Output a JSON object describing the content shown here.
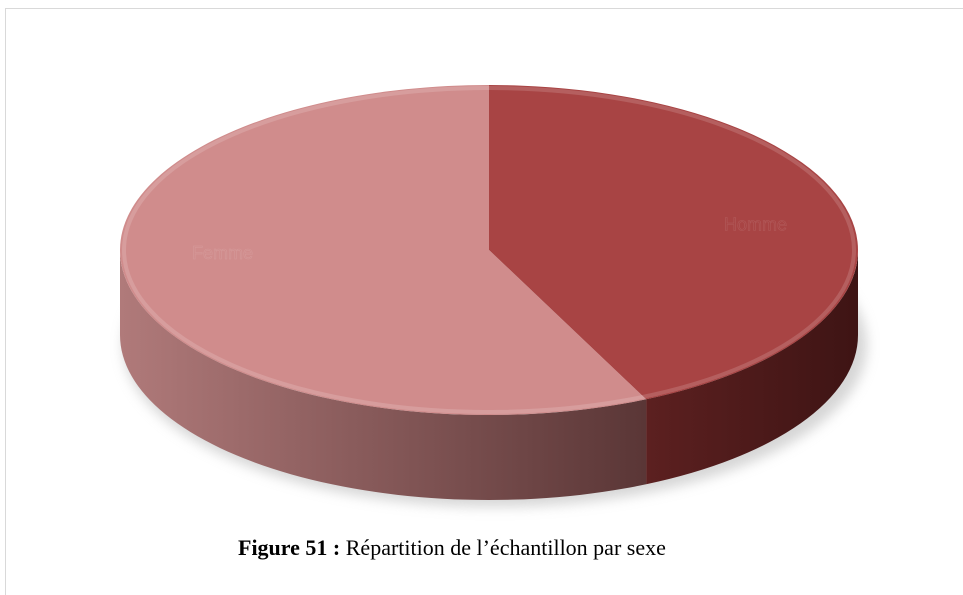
{
  "chart_data": {
    "type": "pie",
    "categories": [
      "Homme",
      "Femme"
    ],
    "values": [
      43,
      57
    ],
    "colors": [
      "#a84444",
      "#d08c8c"
    ],
    "figure_label": "Figure 51 :",
    "caption": "Répartition de l’échantillon par sexe"
  }
}
